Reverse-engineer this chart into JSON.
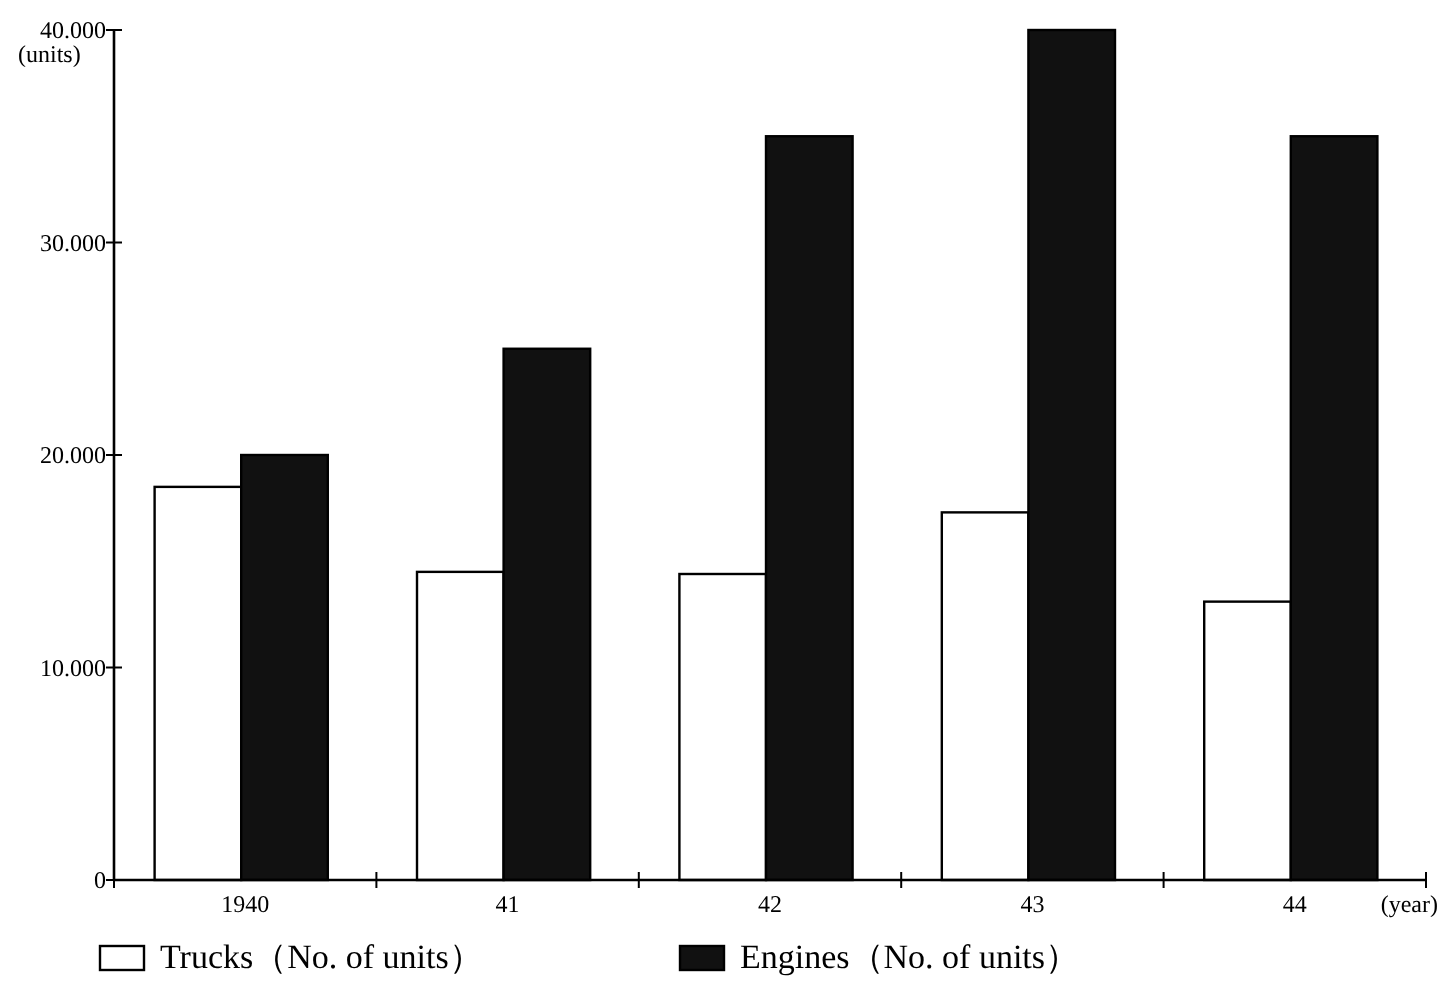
{
  "chart_data": {
    "type": "bar",
    "categories": [
      "1940",
      "41",
      "42",
      "43",
      "44"
    ],
    "xlabel": "(year)",
    "ylabel": "(units)",
    "ylim": [
      0,
      40000
    ],
    "yticks": [
      {
        "value": 0,
        "label": "0"
      },
      {
        "value": 10000,
        "label": "10.000"
      },
      {
        "value": 20000,
        "label": "20.000"
      },
      {
        "value": 30000,
        "label": "30.000"
      },
      {
        "value": 40000,
        "label": "40.000"
      }
    ],
    "series": [
      {
        "name": "Trucks（No. of units）",
        "color": "#ffffff",
        "values": [
          18500,
          14500,
          14400,
          17300,
          13100
        ]
      },
      {
        "name": "Engines（No. of units）",
        "color": "#111111",
        "values": [
          20000,
          25000,
          35000,
          40000,
          35000
        ]
      }
    ],
    "legend": "bottom",
    "grid": false
  }
}
